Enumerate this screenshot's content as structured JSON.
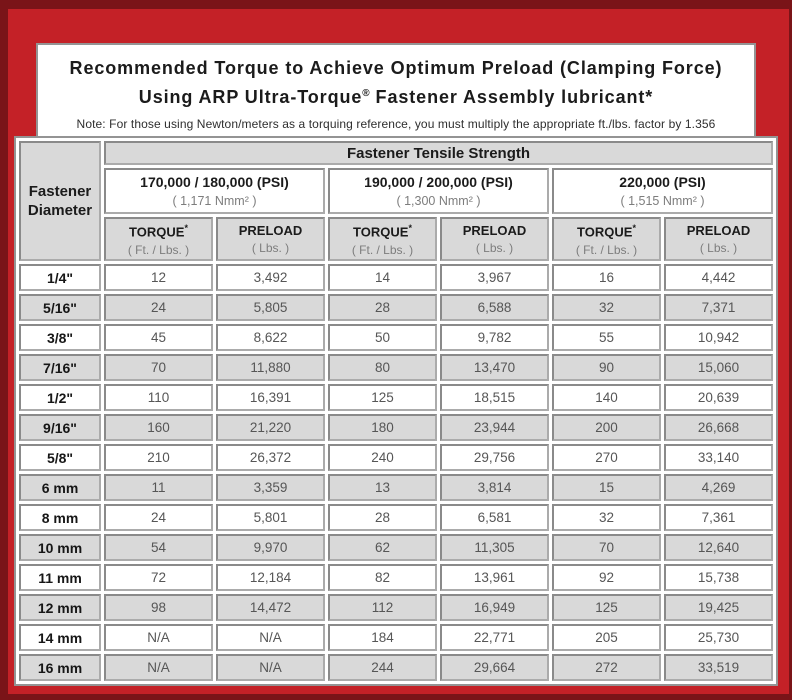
{
  "header": {
    "title_line1": "Recommended Torque to Achieve Optimum Preload (Clamping Force)",
    "title_line2_pre": "Using ARP Ultra-Torque",
    "title_line2_reg": "®",
    "title_line2_post": " Fastener Assembly lubricant*",
    "note": "Note: For those using Newton/meters as a torquing reference, you must multiply the appropriate ft./lbs. factor by 1.356"
  },
  "chart_data": {
    "type": "table",
    "title": "Recommended Torque to Achieve Optimum Preload (Clamping Force) Using ARP Ultra-Torque® Fastener Assembly lubricant*",
    "tensile_header": "Fastener Tensile Strength",
    "corner": {
      "line1": "Fastener",
      "line2": "Diameter"
    },
    "psi_groups": [
      {
        "psi": "170,000 / 180,000 (PSI)",
        "nmm": "( 1,171 Nmm² )"
      },
      {
        "psi": "190,000 / 200,000 (PSI)",
        "nmm": "( 1,300 Nmm² )"
      },
      {
        "psi": "220,000 (PSI)",
        "nmm": "( 1,515 Nmm² )"
      }
    ],
    "col_headers": {
      "torque": "TORQUE",
      "torque_sup": "*",
      "torque_sub": "( Ft. / Lbs. )",
      "preload": "PRELOAD",
      "preload_sub": "( Lbs. )"
    },
    "rows": [
      {
        "diameter": "1/4\"",
        "values": [
          "12",
          "3,492",
          "14",
          "3,967",
          "16",
          "4,442"
        ]
      },
      {
        "diameter": "5/16\"",
        "values": [
          "24",
          "5,805",
          "28",
          "6,588",
          "32",
          "7,371"
        ]
      },
      {
        "diameter": "3/8\"",
        "values": [
          "45",
          "8,622",
          "50",
          "9,782",
          "55",
          "10,942"
        ]
      },
      {
        "diameter": "7/16\"",
        "values": [
          "70",
          "11,880",
          "80",
          "13,470",
          "90",
          "15,060"
        ]
      },
      {
        "diameter": "1/2\"",
        "values": [
          "110",
          "16,391",
          "125",
          "18,515",
          "140",
          "20,639"
        ]
      },
      {
        "diameter": "9/16\"",
        "values": [
          "160",
          "21,220",
          "180",
          "23,944",
          "200",
          "26,668"
        ]
      },
      {
        "diameter": "5/8\"",
        "values": [
          "210",
          "26,372",
          "240",
          "29,756",
          "270",
          "33,140"
        ]
      },
      {
        "diameter": "6 mm",
        "values": [
          "11",
          "3,359",
          "13",
          "3,814",
          "15",
          "4,269"
        ]
      },
      {
        "diameter": "8 mm",
        "values": [
          "24",
          "5,801",
          "28",
          "6,581",
          "32",
          "7,361"
        ]
      },
      {
        "diameter": "10 mm",
        "values": [
          "54",
          "9,970",
          "62",
          "11,305",
          "70",
          "12,640"
        ]
      },
      {
        "diameter": "11 mm",
        "values": [
          "72",
          "12,184",
          "82",
          "13,961",
          "92",
          "15,738"
        ]
      },
      {
        "diameter": "12 mm",
        "values": [
          "98",
          "14,472",
          "112",
          "16,949",
          "125",
          "19,425"
        ]
      },
      {
        "diameter": "14 mm",
        "values": [
          "N/A",
          "N/A",
          "184",
          "22,771",
          "205",
          "25,730"
        ]
      },
      {
        "diameter": "16 mm",
        "values": [
          "N/A",
          "N/A",
          "244",
          "29,664",
          "272",
          "33,519"
        ]
      }
    ]
  },
  "colors": {
    "frame-outer": "#7a1418",
    "frame-inner": "#c42127",
    "panel-border": "#949494",
    "shade": "#d9d9d9",
    "text-dark": "#1b1b1b",
    "text-value": "#565656",
    "text-sub": "#7d7d7d"
  }
}
